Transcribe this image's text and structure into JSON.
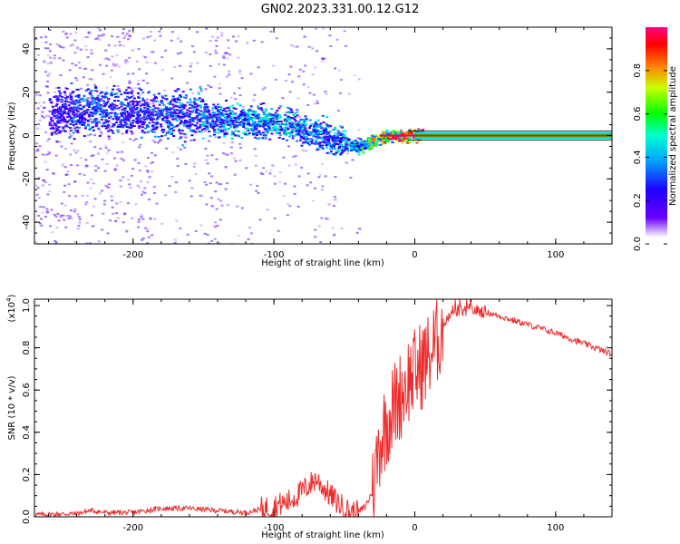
{
  "title": "GN02.2023.331.00.12.G12",
  "colors": {
    "snr_line": "#ee2b2b",
    "axes": "#000000",
    "background": "#ffffff"
  },
  "chart_data": [
    {
      "type": "heatmap",
      "xlabel": "Height of straight line (km)",
      "ylabel": "Frequency (Hz)",
      "xlim": [
        -270,
        140
      ],
      "ylim": [
        -50,
        50
      ],
      "x_ticks": [
        -200,
        -100,
        0,
        100
      ],
      "y_ticks": [
        -40,
        -20,
        0,
        20,
        40
      ],
      "colorbar": {
        "label": "Normalized spectral amplitude",
        "range": [
          0.0,
          1.0
        ],
        "ticks": [
          "0.0",
          "0.2",
          "0.4",
          "0.6",
          "0.8"
        ],
        "colormap": [
          "#ffffff",
          "#6a00ff",
          "#1e00ff",
          "#00a0ff",
          "#00ffd0",
          "#00ff00",
          "#c8ff00",
          "#ff8000",
          "#ff0000",
          "#ff0080"
        ]
      },
      "ridge": {
        "description_points_x": [
          -260,
          -230,
          -200,
          -170,
          -140,
          -110,
          -90,
          -70,
          -50,
          -40,
          -30,
          -20,
          -10,
          0,
          10,
          140
        ],
        "frequency_y": [
          10,
          12,
          11,
          10,
          8,
          7,
          5,
          1,
          -3,
          -5,
          -2,
          0,
          0,
          1,
          0,
          0
        ],
        "amplitude": [
          0.25,
          0.35,
          0.3,
          0.35,
          0.4,
          0.45,
          0.45,
          0.4,
          0.4,
          0.5,
          0.7,
          0.8,
          0.85,
          0.9,
          0.95,
          0.95
        ]
      }
    },
    {
      "type": "line",
      "xlabel": "Height of straight line (km)",
      "ylabel": "SNR (10 * v/v)",
      "scale_label": "(x10",
      "scale_exponent": "4",
      "scale_close": ")",
      "xlim": [
        -270,
        140
      ],
      "ylim": [
        0,
        1.03
      ],
      "x_ticks": [
        -200,
        -100,
        0,
        100
      ],
      "y_ticks": [
        "0.0",
        "0.2",
        "0.4",
        "0.6",
        "0.8",
        "1.0"
      ],
      "series": [
        {
          "x": [
            -270,
            -240,
            -230,
            -220,
            -200,
            -180,
            -160,
            -140,
            -120,
            -100,
            -90,
            -80,
            -70,
            -60,
            -50,
            -45,
            -40,
            -35,
            -30,
            -25,
            -20,
            -15,
            -10,
            -5,
            0,
            5,
            10,
            15,
            20,
            25,
            30,
            40,
            50,
            60,
            80,
            100,
            120,
            140
          ],
          "y": [
            0.01,
            0.015,
            0.03,
            0.02,
            0.02,
            0.04,
            0.04,
            0.03,
            0.02,
            0.05,
            0.07,
            0.12,
            0.18,
            0.1,
            0.04,
            0.02,
            0.02,
            0.05,
            0.12,
            0.35,
            0.45,
            0.52,
            0.58,
            0.65,
            0.68,
            0.72,
            0.76,
            0.82,
            0.9,
            0.95,
            0.97,
            0.98,
            0.97,
            0.95,
            0.91,
            0.87,
            0.82,
            0.77
          ]
        }
      ]
    }
  ]
}
